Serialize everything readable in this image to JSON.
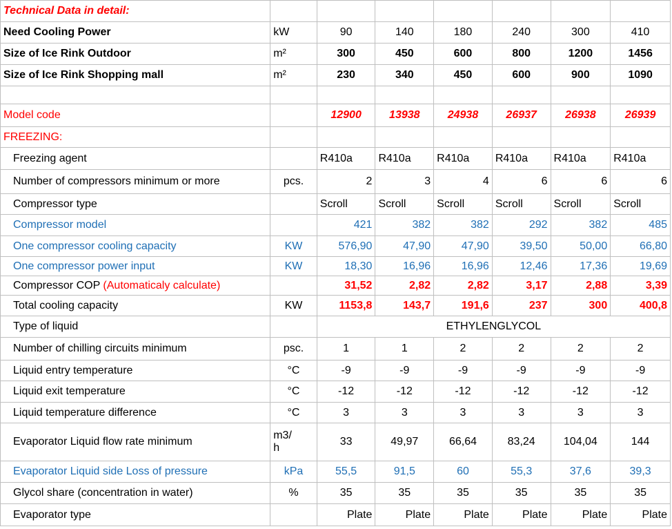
{
  "title": "Technical Data in detail:",
  "header_rows": [
    {
      "label": "Need Cooling Power",
      "unit": "kW",
      "values": [
        "90",
        "140",
        "180",
        "240",
        "300",
        "410"
      ]
    },
    {
      "label": "Size of Ice Rink  Outdoor",
      "unit": "m²",
      "values": [
        "300",
        "450",
        "600",
        "800",
        "1200",
        "1456"
      ]
    },
    {
      "label": "Size of Ice Rink Shopping mall",
      "unit": "m²",
      "values": [
        "230",
        "340",
        "450",
        "600",
        "900",
        "1090"
      ]
    }
  ],
  "model_code": {
    "label": "Model code",
    "values": [
      "12900",
      "13938",
      "24938",
      "26937",
      "26938",
      "26939"
    ]
  },
  "freezing_label": "FREEZING:",
  "rows": {
    "agent": {
      "label": "Freezing agent",
      "unit": "",
      "values": [
        "R410a",
        "R410a",
        "R410a",
        "R410a",
        "R410a",
        "R410a"
      ]
    },
    "num_comp": {
      "label": "Number of compressors minimum or more",
      "unit": "pcs.",
      "values": [
        "2",
        "3",
        "4",
        "6",
        "6",
        "6"
      ]
    },
    "comp_type": {
      "label": "Compressor type",
      "unit": "",
      "values": [
        "Scroll",
        "Scroll",
        "Scroll",
        "Scroll",
        "Scroll",
        "Scroll"
      ]
    },
    "comp_model": {
      "label": "Compressor model",
      "unit": "",
      "values": [
        "421",
        "382",
        "382",
        "292",
        "382",
        "485"
      ]
    },
    "one_cap": {
      "label": "One compressor cooling capacity",
      "unit": "KW",
      "values": [
        "576,90",
        "47,90",
        "47,90",
        "39,50",
        "50,00",
        "66,80"
      ]
    },
    "one_pow": {
      "label": "One compressor power input",
      "unit": "KW",
      "values": [
        "18,30",
        "16,96",
        "16,96",
        "12,46",
        "17,36",
        "19,69"
      ]
    },
    "cop": {
      "label": "Compressor COP",
      "label_note": "(Automaticaly calculate)",
      "unit": "",
      "values": [
        "31,52",
        "2,82",
        "2,82",
        "3,17",
        "2,88",
        "3,39"
      ]
    },
    "total": {
      "label": "Total cooling capacity",
      "unit": "KW",
      "values": [
        "1153,8",
        "143,7",
        "191,6",
        "237",
        "300",
        "400,8"
      ]
    },
    "liquid": {
      "label": "Type of liquid",
      "unit": "",
      "value": "ETHYLENGLYCOL"
    },
    "circuits": {
      "label": "Number of chilling circuits minimum",
      "unit": "psc.",
      "values": [
        "1",
        "1",
        "2",
        "2",
        "2",
        "2"
      ]
    },
    "entry": {
      "label": "Liquid entry temperature",
      "unit": "°C",
      "values": [
        "-9",
        "-9",
        "-9",
        "-9",
        "-9",
        "-9"
      ]
    },
    "exit": {
      "label": "Liquid exit temperature",
      "unit": "°C",
      "values": [
        "-12",
        "-12",
        "-12",
        "-12",
        "-12",
        "-12"
      ]
    },
    "diff": {
      "label": "Liquid temperature difference",
      "unit": "°C",
      "values": [
        "3",
        "3",
        "3",
        "3",
        "3",
        "3"
      ]
    },
    "flow": {
      "label": "Evaporator Liquid flow rate  minimum",
      "unit_line1": "m3/",
      "unit_line2": "h",
      "values": [
        "33",
        "49,97",
        "66,64",
        "83,24",
        "104,04",
        "144"
      ]
    },
    "loss": {
      "label": "Evaporator Liquid side Loss of pressure",
      "unit": "kPa",
      "values": [
        "55,5",
        "91,5",
        "60",
        "55,3",
        "37,6",
        "39,3"
      ]
    },
    "glycol": {
      "label": "Glycol share (concentration in water)",
      "unit": "%",
      "values": [
        "35",
        "35",
        "35",
        "35",
        "35",
        "35"
      ]
    },
    "evap_type": {
      "label": "Evaporator type",
      "unit": "",
      "values": [
        "Plate",
        "Plate",
        "Plate",
        "Plate",
        "Plate",
        "Plate"
      ]
    }
  },
  "colors": {
    "red": "#ff0000",
    "blue": "#1f6fb5",
    "grid": "#bfbfbf"
  }
}
